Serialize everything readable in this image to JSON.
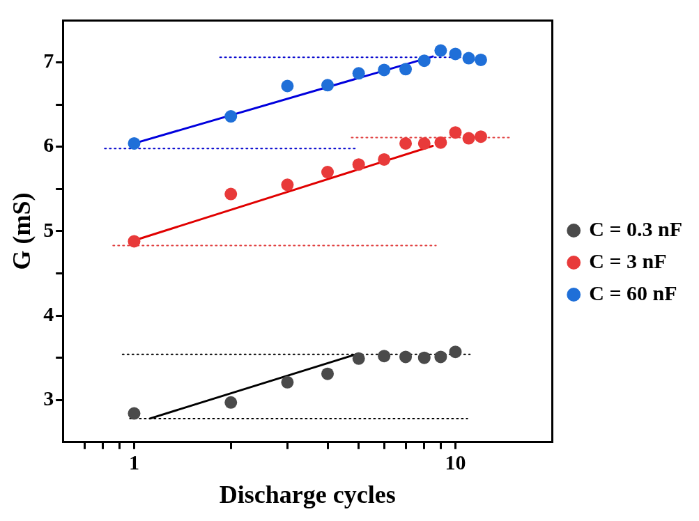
{
  "chart_data": {
    "type": "scatter",
    "xlabel": "Discharge cycles",
    "ylabel": "G (mS)",
    "log": "x",
    "grid": false,
    "legend": "right",
    "xlim": [
      0.6,
      20
    ],
    "xticks": [
      {
        "value": 0.7,
        "label": null
      },
      {
        "value": 0.8,
        "label": null
      },
      {
        "value": 0.9,
        "label": null
      },
      1,
      {
        "value": 2,
        "label": null
      },
      {
        "value": 3,
        "label": null
      },
      {
        "value": 4,
        "label": null
      },
      {
        "value": 5,
        "label": null
      },
      {
        "value": 6,
        "label": null
      },
      {
        "value": 7,
        "label": null
      },
      {
        "value": 8,
        "label": null
      },
      {
        "value": 9,
        "label": null
      },
      10
    ],
    "ylim": [
      2.5,
      7.5
    ],
    "yticks": [
      3,
      {
        "value": 3.5,
        "label": null
      },
      4,
      {
        "value": 4.5,
        "label": null
      },
      5,
      {
        "value": 5.5,
        "label": null
      },
      6,
      {
        "value": 6.5,
        "label": null
      },
      7
    ],
    "series": [
      {
        "name": "C = 0.3 nF",
        "marker": "circle",
        "color": "#4a4a4a",
        "x": [
          1,
          2,
          3,
          4,
          5,
          6,
          7,
          8,
          9,
          10
        ],
        "values": [
          2.84,
          2.97,
          3.21,
          3.31,
          3.49,
          3.52,
          3.51,
          3.5,
          3.51,
          3.57
        ]
      },
      {
        "name": "C = 3 nF",
        "marker": "circle",
        "color": "#e83a3a",
        "x": [
          1,
          2,
          3,
          4,
          5,
          6,
          7,
          8,
          9,
          10,
          11,
          12
        ],
        "values": [
          4.88,
          5.44,
          5.55,
          5.7,
          5.79,
          5.85,
          6.04,
          6.04,
          6.05,
          6.17,
          6.1,
          6.12
        ]
      },
      {
        "name": "C = 60 nF",
        "marker": "circle",
        "color": "#1f6fd8",
        "x": [
          1,
          2,
          3,
          4,
          5,
          6,
          7,
          8,
          9,
          10,
          11,
          12
        ],
        "values": [
          6.04,
          6.36,
          6.72,
          6.73,
          6.87,
          6.91,
          6.92,
          7.02,
          7.14,
          7.1,
          7.05,
          7.03
        ]
      },
      {
        "type": "line",
        "marker": "none",
        "color": "#000000",
        "line_style": "solid",
        "x": [
          1.12,
          5
        ],
        "values": [
          2.78,
          3.55
        ]
      },
      {
        "type": "line",
        "marker": "none",
        "color": "#e00000",
        "line_style": "solid",
        "x": [
          1,
          8.5
        ],
        "values": [
          4.89,
          6.01
        ]
      },
      {
        "type": "line",
        "marker": "none",
        "color": "#0000dd",
        "line_style": "solid",
        "x": [
          1,
          8.5
        ],
        "values": [
          6.04,
          7.07
        ]
      },
      {
        "type": "line",
        "marker": "none",
        "color": "#000000",
        "line_style": "dotted",
        "x": [
          0.92,
          11.1
        ],
        "values": [
          3.54,
          3.54
        ]
      },
      {
        "type": "line",
        "marker": "none",
        "color": "#000000",
        "line_style": "dotted",
        "x": [
          0.97,
          10.9
        ],
        "values": [
          2.78,
          2.78
        ]
      },
      {
        "type": "line",
        "marker": "none",
        "color": "#e04040",
        "line_style": "dotted",
        "x": [
          0.86,
          8.7
        ],
        "values": [
          4.83,
          4.83
        ]
      },
      {
        "type": "line",
        "marker": "none",
        "color": "#e04040",
        "line_style": "dotted",
        "x": [
          4.75,
          14.9
        ],
        "values": [
          6.11,
          6.11
        ]
      },
      {
        "type": "line",
        "marker": "none",
        "color": "#0000cc",
        "line_style": "dotted",
        "x": [
          0.81,
          4.87
        ],
        "values": [
          5.98,
          5.98
        ]
      },
      {
        "type": "line",
        "marker": "none",
        "color": "#0000cc",
        "line_style": "dotted",
        "x": [
          1.85,
          10.4
        ],
        "values": [
          7.06,
          7.06
        ]
      }
    ]
  }
}
